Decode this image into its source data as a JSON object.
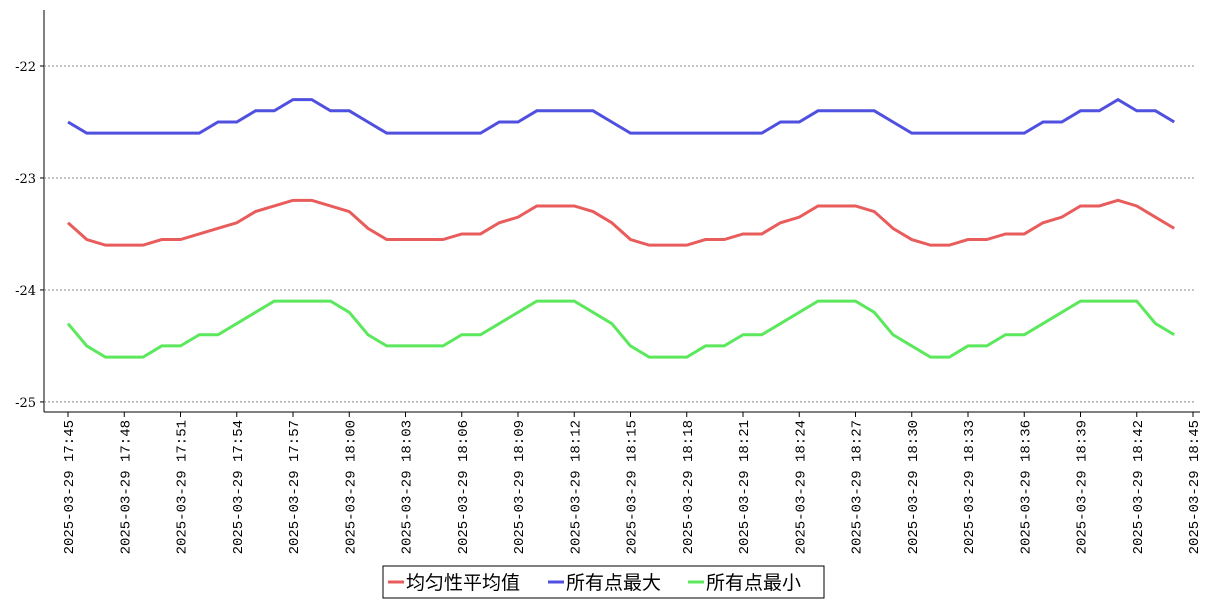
{
  "chart_data": {
    "type": "line",
    "categories": [
      "2025-03-29 17:45",
      null,
      null,
      "2025-03-29 17:48",
      null,
      null,
      "2025-03-29 17:51",
      null,
      null,
      "2025-03-29 17:54",
      null,
      null,
      "2025-03-29 17:57",
      null,
      null,
      "2025-03-29 18:00",
      null,
      null,
      "2025-03-29 18:03",
      null,
      null,
      "2025-03-29 18:06",
      null,
      null,
      "2025-03-29 18:09",
      null,
      null,
      "2025-03-29 18:12",
      null,
      null,
      "2025-03-29 18:15",
      null,
      null,
      "2025-03-29 18:18",
      null,
      null,
      "2025-03-29 18:21",
      null,
      null,
      "2025-03-29 18:24",
      null,
      null,
      "2025-03-29 18:27",
      null,
      null,
      "2025-03-29 18:30",
      null,
      null,
      "2025-03-29 18:33",
      null,
      null,
      "2025-03-29 18:36",
      null,
      null,
      "2025-03-29 18:39",
      null,
      null,
      "2025-03-29 18:42",
      null,
      null,
      "2025-03-29 18:45"
    ],
    "series": [
      {
        "name": "均匀性平均值",
        "color": "#e85c5c",
        "values": [
          -23.4,
          -23.55,
          -23.6,
          -23.6,
          -23.6,
          -23.55,
          -23.55,
          -23.5,
          -23.45,
          -23.4,
          -23.3,
          -23.25,
          -23.2,
          -23.2,
          -23.25,
          -23.3,
          -23.45,
          -23.55,
          -23.55,
          -23.55,
          -23.55,
          -23.5,
          -23.5,
          -23.4,
          -23.35,
          -23.25,
          -23.25,
          -23.25,
          -23.3,
          -23.4,
          -23.55,
          -23.6,
          -23.6,
          -23.6,
          -23.55,
          -23.55,
          -23.5,
          -23.5,
          -23.4,
          -23.35,
          -23.25,
          -23.25,
          -23.25,
          -23.3,
          -23.45,
          -23.55,
          -23.6,
          -23.6,
          -23.55,
          -23.55,
          -23.5,
          -23.5,
          -23.4,
          -23.35,
          -23.25,
          -23.25,
          -23.2,
          -23.25,
          -23.35,
          -23.45,
          null
        ]
      },
      {
        "name": "所有点最大",
        "color": "#5050e0",
        "values": [
          -22.5,
          -22.6,
          -22.6,
          -22.6,
          -22.6,
          -22.6,
          -22.6,
          -22.6,
          -22.5,
          -22.5,
          -22.4,
          -22.4,
          -22.3,
          -22.3,
          -22.4,
          -22.4,
          -22.5,
          -22.6,
          -22.6,
          -22.6,
          -22.6,
          -22.6,
          -22.6,
          -22.5,
          -22.5,
          -22.4,
          -22.4,
          -22.4,
          -22.4,
          -22.5,
          -22.6,
          -22.6,
          -22.6,
          -22.6,
          -22.6,
          -22.6,
          -22.6,
          -22.6,
          -22.5,
          -22.5,
          -22.4,
          -22.4,
          -22.4,
          -22.4,
          -22.5,
          -22.6,
          -22.6,
          -22.6,
          -22.6,
          -22.6,
          -22.6,
          -22.6,
          -22.5,
          -22.5,
          -22.4,
          -22.4,
          -22.3,
          -22.4,
          -22.4,
          -22.5,
          null
        ]
      },
      {
        "name": "所有点最小",
        "color": "#5ce85c",
        "values": [
          -24.3,
          -24.5,
          -24.6,
          -24.6,
          -24.6,
          -24.5,
          -24.5,
          -24.4,
          -24.4,
          -24.3,
          -24.2,
          -24.1,
          -24.1,
          -24.1,
          -24.1,
          -24.2,
          -24.4,
          -24.5,
          -24.5,
          -24.5,
          -24.5,
          -24.4,
          -24.4,
          -24.3,
          -24.2,
          -24.1,
          -24.1,
          -24.1,
          -24.2,
          -24.3,
          -24.5,
          -24.6,
          -24.6,
          -24.6,
          -24.5,
          -24.5,
          -24.4,
          -24.4,
          -24.3,
          -24.2,
          -24.1,
          -24.1,
          -24.1,
          -24.2,
          -24.4,
          -24.5,
          -24.6,
          -24.6,
          -24.5,
          -24.5,
          -24.4,
          -24.4,
          -24.3,
          -24.2,
          -24.1,
          -24.1,
          -24.1,
          -24.1,
          -24.3,
          -24.4,
          null
        ]
      }
    ],
    "ylim": [
      -25.09,
      -21.5
    ],
    "yticks": [
      -25,
      -24,
      -23,
      -22
    ],
    "grid": true
  }
}
